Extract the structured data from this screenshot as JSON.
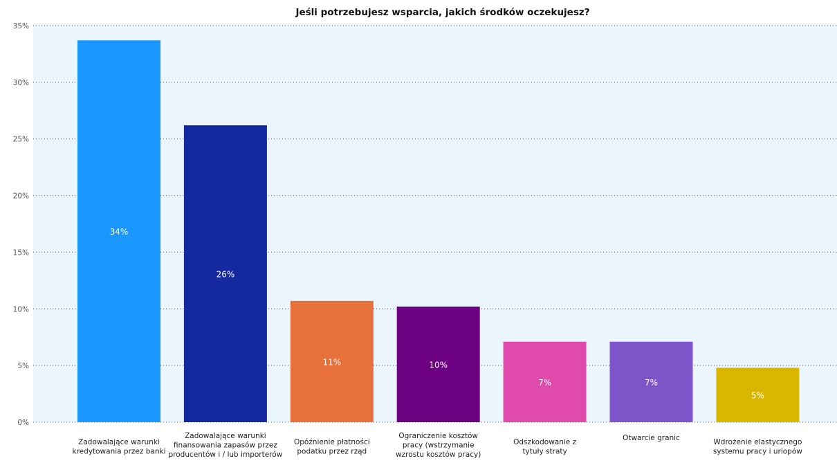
{
  "chart_data": {
    "type": "bar",
    "title": "Jeśli potrzebujesz wsparcia, jakich środków oczekujesz?",
    "categories": [
      [
        "Zadowalające warunki",
        "kredytowania przez banki"
      ],
      [
        "Zadowalające warunki",
        "finansowania zapasów przez",
        "producentów i / lub importerów"
      ],
      [
        "Opóźnienie płatności",
        "podatku przez rząd"
      ],
      [
        "Ograniczenie kosztów",
        "pracy (wstrzymanie",
        "wzrostu kosztów pracy)"
      ],
      [
        "Odszkodowanie z",
        "tytuły straty"
      ],
      [
        "Otwarcie granic"
      ],
      [
        "Wdrożenie elastycznego",
        "systemu pracy i urlopów"
      ]
    ],
    "values": [
      33.7,
      26.2,
      10.7,
      10.2,
      7.1,
      7.1,
      4.8
    ],
    "data_labels": [
      "34%",
      "26%",
      "11%",
      "10%",
      "7%",
      "7%",
      "5%"
    ],
    "bar_colors": [
      "#1a97ff",
      "#1428a0",
      "#e8703a",
      "#6b0080",
      "#e04aab",
      "#7e55c8",
      "#d9b600"
    ],
    "ylim": [
      0,
      35
    ],
    "yticks": [
      0,
      5,
      10,
      15,
      20,
      25,
      30,
      35
    ],
    "ytick_labels": [
      "0%",
      "5%",
      "10%",
      "15%",
      "20%",
      "25%",
      "30%",
      "35%"
    ],
    "grid": "dotted horizontal",
    "plot_background": "#eaf5fd",
    "legend": "none"
  }
}
